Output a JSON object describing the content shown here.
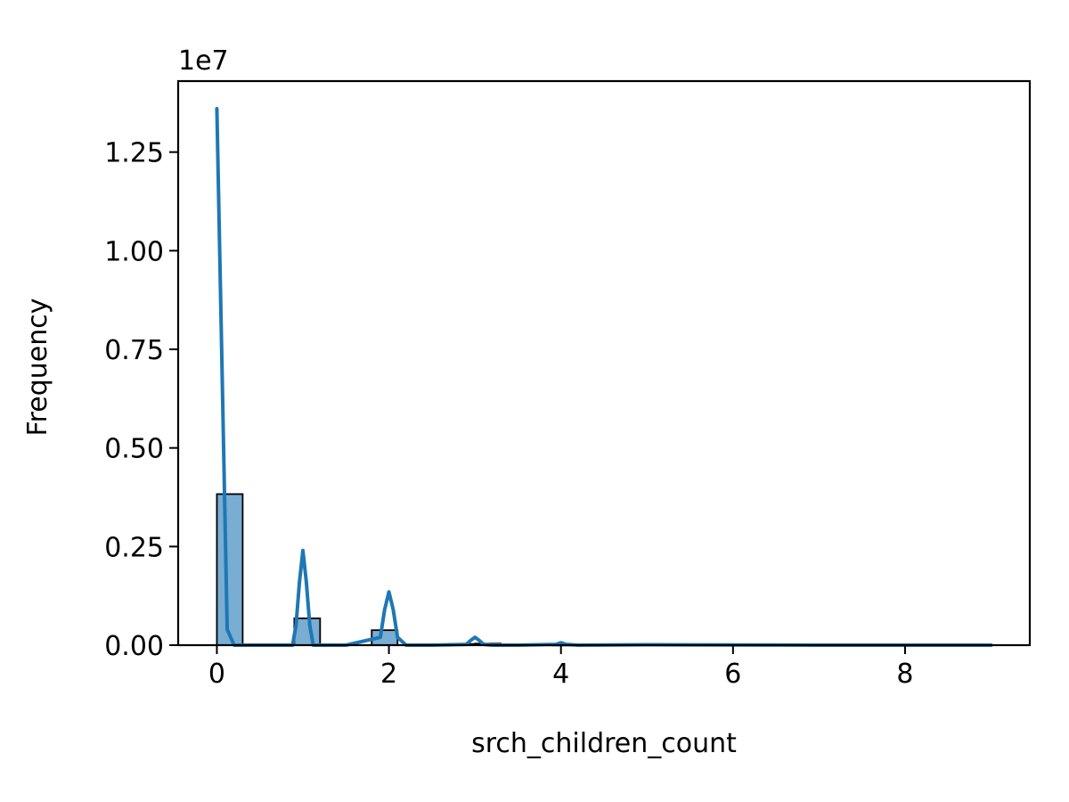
{
  "chart_data": {
    "type": "bar",
    "title": "",
    "xlabel": "srch_children_count",
    "ylabel": "Frequency",
    "y_offset_text": "1e7",
    "y_scale": 10000000,
    "xlim": [
      -0.45,
      9.45
    ],
    "ylim": [
      0,
      1.43
    ],
    "x_ticks": [
      0,
      2,
      4,
      6,
      8
    ],
    "x_tick_labels": [
      "0",
      "2",
      "4",
      "6",
      "8"
    ],
    "y_ticks": [
      0,
      0.25,
      0.5,
      0.75,
      1.0,
      1.25
    ],
    "y_tick_labels": [
      "0.00",
      "0.25",
      "0.50",
      "0.75",
      "1.00",
      "1.25"
    ],
    "grid": false,
    "bin_width": 0.3,
    "bins": [
      {
        "x0": 0.0,
        "x1": 0.3,
        "value": 0.383
      },
      {
        "x0": 0.9,
        "x1": 1.2,
        "value": 0.068
      },
      {
        "x0": 1.8,
        "x1": 2.1,
        "value": 0.038
      },
      {
        "x0": 2.7,
        "x1": 3.0,
        "value": 0.003
      },
      {
        "x0": 3.0,
        "x1": 3.3,
        "value": 0.004
      },
      {
        "x0": 3.9,
        "x1": 4.2,
        "value": 0.001
      }
    ],
    "kde": {
      "x": [
        0.0,
        0.06,
        0.12,
        0.2,
        0.5,
        0.88,
        0.92,
        0.96,
        1.0,
        1.04,
        1.08,
        1.12,
        1.2,
        1.5,
        1.9,
        1.95,
        2.0,
        2.05,
        2.1,
        2.2,
        2.5,
        2.9,
        2.95,
        3.0,
        3.05,
        3.1,
        3.2,
        3.5,
        3.94,
        4.0,
        4.06,
        4.2,
        5.0,
        6.0,
        7.0,
        8.0,
        9.0
      ],
      "y": [
        1.36,
        0.7,
        0.04,
        0.0,
        0.0,
        0.0,
        0.05,
        0.16,
        0.24,
        0.16,
        0.05,
        0.0,
        0.0,
        0.0,
        0.02,
        0.09,
        0.135,
        0.09,
        0.02,
        0.0,
        0.0,
        0.002,
        0.012,
        0.02,
        0.012,
        0.002,
        0.0,
        0.0,
        0.002,
        0.006,
        0.002,
        0.0,
        0.001,
        0.0005,
        0.0,
        0.0,
        0.0
      ]
    },
    "colors": {
      "bar_fill": "#1f77b4",
      "bar_edge": "#000000",
      "kde_line": "#1f77b4"
    }
  }
}
